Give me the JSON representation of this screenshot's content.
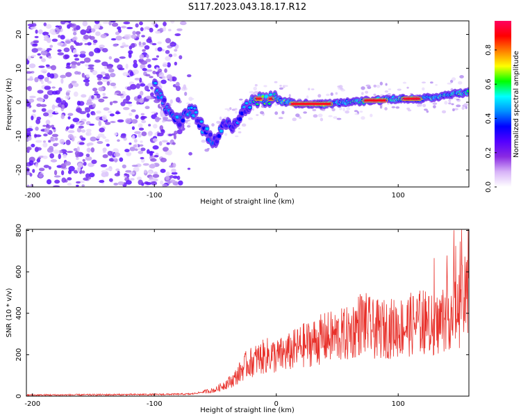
{
  "figure_title": "S117.2023.043.18.17.R12",
  "chart_data": [
    {
      "type": "heatmap",
      "xlabel": "Height of straight line (km)",
      "ylabel": "Frequency (Hz)",
      "xlim": [
        -205,
        158
      ],
      "ylim": [
        -25,
        24
      ],
      "xticks": [
        -200,
        -100,
        0,
        100
      ],
      "yticks": [
        20,
        10,
        0,
        -10,
        -20
      ],
      "colorbar": {
        "label": "Normalized spectral amplitude",
        "range": [
          0.0,
          0.97
        ],
        "ticks": [
          0.0,
          0.2,
          0.4,
          0.6,
          0.8
        ],
        "colors": [
          "#ffffff",
          "#d8b4f8",
          "#8a2be2",
          "#5500ff",
          "#0000ff",
          "#0090ff",
          "#00ffff",
          "#00ff00",
          "#ffff00",
          "#ff8000",
          "#ff0000",
          "#ff0060"
        ]
      },
      "ridge": {
        "x": [
          -100,
          -95,
          -90,
          -85,
          -80,
          -75,
          -70,
          -65,
          -60,
          -55,
          -50,
          -45,
          -40,
          -35,
          -30,
          -25,
          -20,
          -15,
          -10,
          -5,
          0,
          5,
          10,
          20,
          40,
          60,
          80,
          100,
          120,
          140,
          158
        ],
        "freq": [
          5,
          2,
          -2,
          -4,
          -6,
          -4,
          -2,
          -4,
          -8,
          -10,
          -12,
          -8,
          -6,
          -7,
          -4,
          -2,
          0,
          1,
          1,
          1,
          1,
          0,
          0,
          -0.5,
          -0.5,
          0,
          0.5,
          1,
          1,
          2,
          3
        ]
      },
      "grid": false
    },
    {
      "type": "line",
      "xlabel": "Height of straight line (km)",
      "ylabel": "SNR (10 * v/v)",
      "xlim": [
        -205,
        158
      ],
      "ylim": [
        0,
        805
      ],
      "xticks": [
        -200,
        -100,
        0,
        100
      ],
      "yticks": [
        0,
        200,
        400,
        600,
        800
      ],
      "color": "#e8302a",
      "trend": {
        "x": [
          -205,
          -100,
          -70,
          -50,
          -35,
          -25,
          -15,
          -5,
          0,
          10,
          20,
          40,
          60,
          70,
          80,
          100,
          120,
          130,
          140,
          150,
          158
        ],
        "y": [
          5,
          8,
          10,
          30,
          80,
          150,
          180,
          200,
          190,
          210,
          240,
          280,
          300,
          360,
          320,
          330,
          360,
          330,
          400,
          420,
          500
        ]
      },
      "grid": false
    }
  ]
}
